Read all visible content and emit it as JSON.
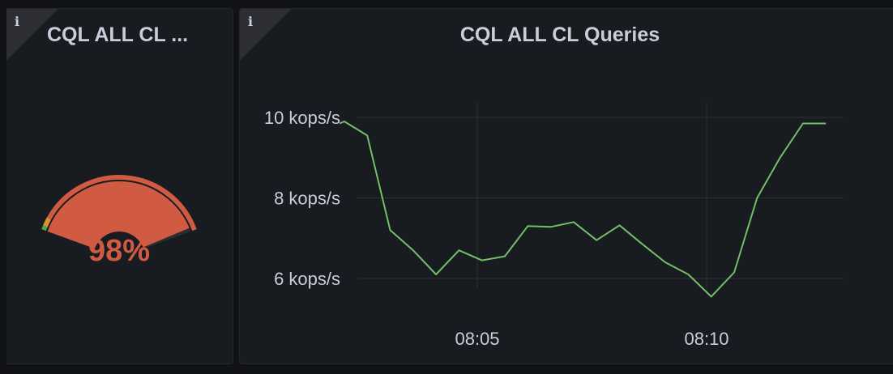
{
  "gauge_panel": {
    "info_icon": "info-icon",
    "title": "CQL ALL CL ...",
    "value_text": "98%",
    "value_percent": 98,
    "colors": {
      "fill": "#d05a42",
      "green": "#4ea64a",
      "orange": "#d9922e",
      "red": "#d05a42",
      "track": "#2a2d31"
    }
  },
  "graph_panel": {
    "info_icon": "info-icon",
    "title": "CQL ALL CL Queries",
    "line_color": "#73bf69",
    "chart_data": {
      "type": "line",
      "title": "CQL ALL CL Queries",
      "y_unit": "kops/s",
      "y_ticks": [
        "10 kops/s",
        "8 kops/s",
        "6 kops/s"
      ],
      "y_tick_values": [
        10,
        8,
        6
      ],
      "x_ticks": [
        "08:05",
        "08:10"
      ],
      "x_tick_minutes": [
        5,
        10
      ],
      "ylim": [
        5.5,
        10.4
      ],
      "xlim": [
        2.0,
        12.6
      ],
      "grid": true,
      "series": [
        {
          "x": [
            2.0,
            2.1,
            2.6,
            3.1,
            3.6,
            4.1,
            4.6,
            5.1,
            5.6,
            6.1,
            6.6,
            7.1,
            7.6,
            8.1,
            8.6,
            9.1,
            9.6,
            10.1,
            10.6,
            11.1,
            11.6,
            12.1,
            12.6
          ],
          "y": [
            9.85,
            9.9,
            9.55,
            7.2,
            6.7,
            6.1,
            6.7,
            6.45,
            6.55,
            7.3,
            7.28,
            7.4,
            6.95,
            7.32,
            6.85,
            6.4,
            6.1,
            5.55,
            6.15,
            8.0,
            9.0,
            9.85,
            9.85
          ]
        }
      ]
    }
  }
}
